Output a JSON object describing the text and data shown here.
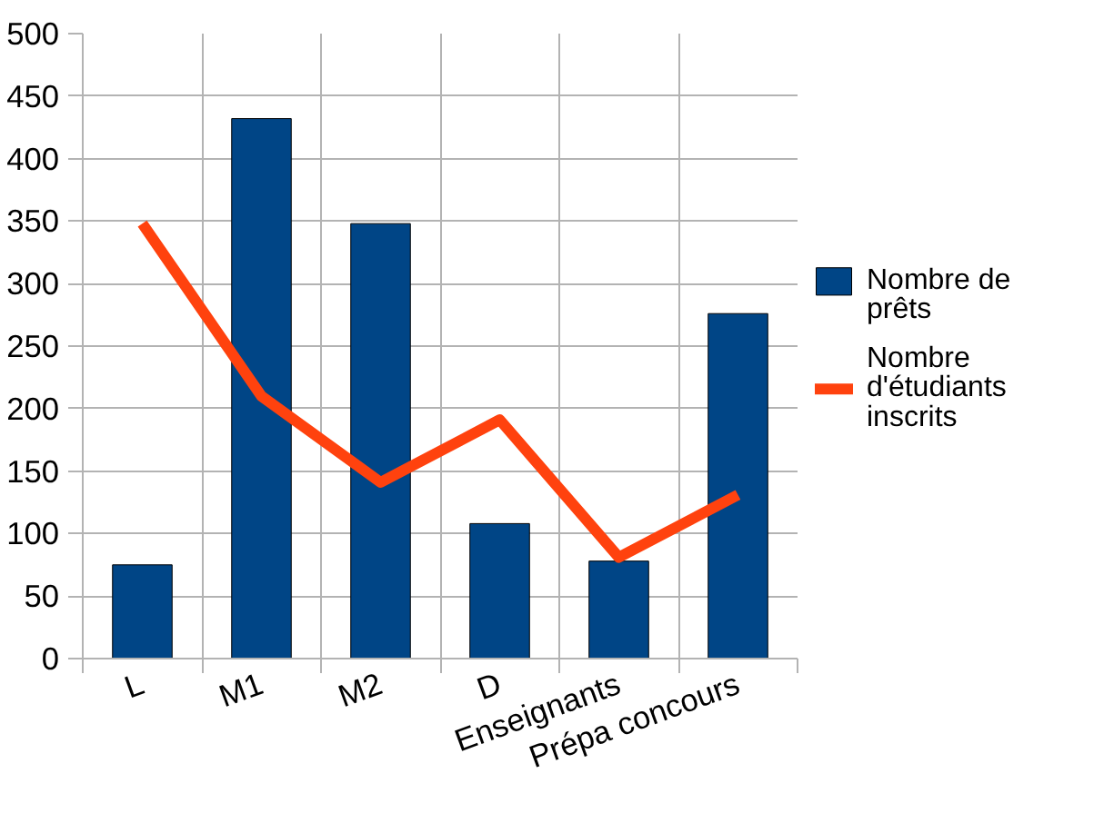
{
  "chart_data": {
    "type": "bar",
    "categories": [
      "L",
      "M1",
      "M2",
      "D",
      "Enseignants",
      "Prépa concours"
    ],
    "series": [
      {
        "name": "Nombre de prêts",
        "color": "#004586",
        "values": [
          75,
          432,
          348,
          108,
          78,
          276
        ]
      },
      {
        "name": "Nombre d'étudiants inscrits",
        "type": "line",
        "color": "#ff420e",
        "values": [
          348,
          210,
          141,
          191,
          81,
          131
        ]
      }
    ],
    "ylim": [
      0,
      500
    ],
    "yticks": [
      0,
      50,
      100,
      150,
      200,
      250,
      300,
      350,
      400,
      450,
      500
    ],
    "grid": true,
    "legend": "right",
    "line_style": "solid",
    "marker": "none"
  }
}
